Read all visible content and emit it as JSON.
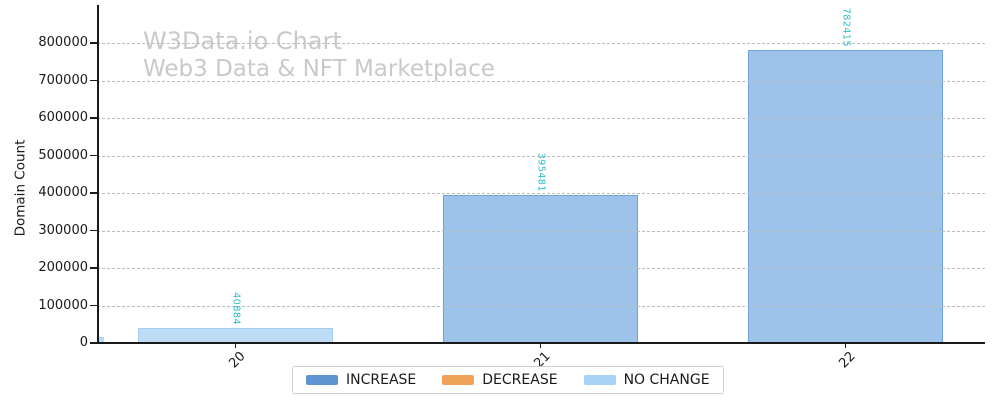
{
  "watermark": {
    "title": "W3Data.io Chart",
    "subtitle": "Web3 Data & NFT Marketplace"
  },
  "chart_data": {
    "type": "bar",
    "title": "",
    "xlabel": "",
    "ylabel": "Domain Count",
    "categories": [
      "20",
      "21",
      "22"
    ],
    "series": [
      {
        "name": "INCREASE",
        "values": [
          0,
          395481,
          782415
        ],
        "fill": "#9dc3ea",
        "edge": "#6fa3d9",
        "legend_color": "#5e93d1"
      },
      {
        "name": "DECREASE",
        "values": [
          0,
          0,
          0
        ],
        "fill": "#f5b87c",
        "edge": "#eda04f",
        "legend_color": "#efa356"
      },
      {
        "name": "NO CHANGE",
        "values": [
          40884,
          0,
          0
        ],
        "fill": "#bfdcf7",
        "edge": "#a3cdf1",
        "legend_color": "#a9d3f6"
      }
    ],
    "bar_value_labels": [
      "40884",
      "395481",
      "782415"
    ],
    "value_label_color": "#26bdca",
    "yticks": [
      0,
      100000,
      200000,
      300000,
      400000,
      500000,
      600000,
      700000,
      800000
    ],
    "ytick_labels": [
      "0",
      "100000",
      "200000",
      "300000",
      "400000",
      "500000",
      "600000",
      "700000",
      "800000"
    ],
    "ylim": [
      0,
      800000
    ],
    "grid": "horizontal-dashed",
    "legend_position": "bottom-center",
    "clipped_partial_bar": {
      "series": "NO CHANGE",
      "estimated_value": 15000
    }
  }
}
